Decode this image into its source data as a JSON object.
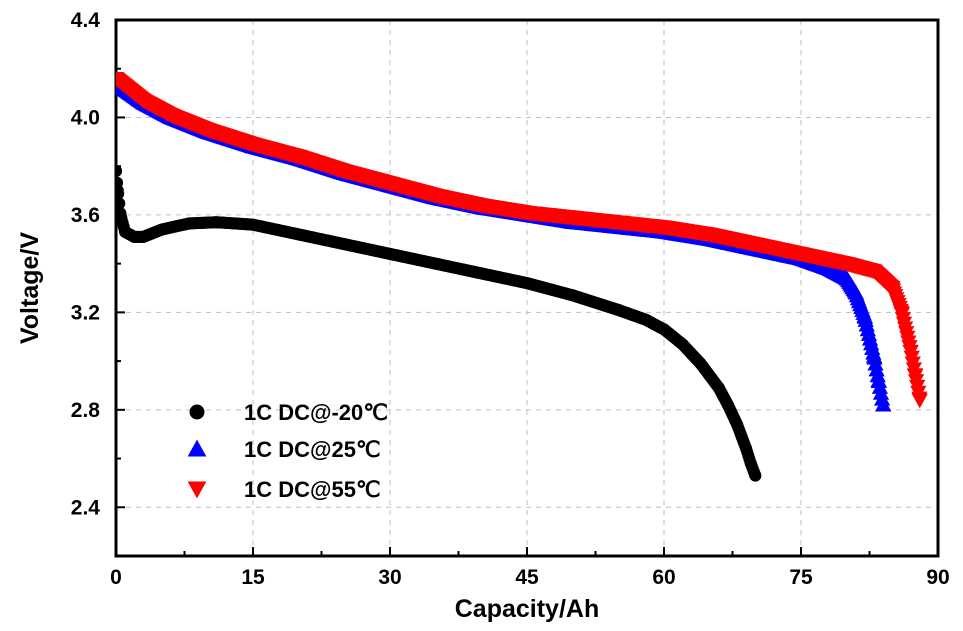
{
  "chart_data": {
    "type": "scatter",
    "xlabel": "Capacity/Ah",
    "ylabel": "Voltage/V",
    "xlim": [
      0,
      90
    ],
    "ylim": [
      2.2,
      4.4
    ],
    "xticks": [
      "0",
      "15",
      "30",
      "45",
      "60",
      "75",
      "90"
    ],
    "yticks": [
      "2.4",
      "2.8",
      "3.2",
      "3.6",
      "4.0",
      "4.4"
    ],
    "grid": true,
    "legend_position": "lower-left",
    "series": [
      {
        "name": "1C DC@-20℃",
        "marker": "circle",
        "color": "#000000",
        "points": [
          [
            0,
            3.78
          ],
          [
            0.2,
            3.7
          ],
          [
            0.5,
            3.6
          ],
          [
            1,
            3.53
          ],
          [
            2,
            3.51
          ],
          [
            3,
            3.51
          ],
          [
            5,
            3.54
          ],
          [
            8,
            3.565
          ],
          [
            11,
            3.57
          ],
          [
            15,
            3.56
          ],
          [
            20,
            3.52
          ],
          [
            25,
            3.48
          ],
          [
            30,
            3.44
          ],
          [
            35,
            3.4
          ],
          [
            40,
            3.36
          ],
          [
            45,
            3.32
          ],
          [
            50,
            3.27
          ],
          [
            55,
            3.21
          ],
          [
            58,
            3.17
          ],
          [
            60,
            3.13
          ],
          [
            62,
            3.07
          ],
          [
            64,
            2.99
          ],
          [
            66,
            2.89
          ],
          [
            67,
            2.82
          ],
          [
            68,
            2.74
          ],
          [
            69,
            2.64
          ],
          [
            69.5,
            2.58
          ],
          [
            70,
            2.53
          ]
        ]
      },
      {
        "name": "1C DC@25℃",
        "marker": "triangle-up",
        "color": "#0000ff",
        "points": [
          [
            0,
            4.14
          ],
          [
            3,
            4.06
          ],
          [
            6,
            4.0
          ],
          [
            10,
            3.94
          ],
          [
            15,
            3.88
          ],
          [
            20,
            3.83
          ],
          [
            25,
            3.77
          ],
          [
            30,
            3.72
          ],
          [
            35,
            3.67
          ],
          [
            40,
            3.63
          ],
          [
            45,
            3.6
          ],
          [
            50,
            3.57
          ],
          [
            55,
            3.55
          ],
          [
            60,
            3.53
          ],
          [
            65,
            3.5
          ],
          [
            70,
            3.46
          ],
          [
            75,
            3.42
          ],
          [
            78,
            3.38
          ],
          [
            80,
            3.34
          ],
          [
            81,
            3.28
          ],
          [
            82,
            3.18
          ],
          [
            83,
            3.02
          ],
          [
            83.5,
            2.92
          ],
          [
            84,
            2.82
          ]
        ]
      },
      {
        "name": "1C DC@55℃",
        "marker": "triangle-down",
        "color": "#ff0000",
        "points": [
          [
            0,
            4.16
          ],
          [
            3,
            4.07
          ],
          [
            6,
            4.01
          ],
          [
            10,
            3.95
          ],
          [
            15,
            3.89
          ],
          [
            20,
            3.84
          ],
          [
            25,
            3.78
          ],
          [
            30,
            3.73
          ],
          [
            35,
            3.68
          ],
          [
            40,
            3.64
          ],
          [
            45,
            3.61
          ],
          [
            50,
            3.59
          ],
          [
            55,
            3.57
          ],
          [
            60,
            3.55
          ],
          [
            65,
            3.52
          ],
          [
            70,
            3.48
          ],
          [
            75,
            3.44
          ],
          [
            80,
            3.4
          ],
          [
            83,
            3.37
          ],
          [
            85,
            3.3
          ],
          [
            86,
            3.2
          ],
          [
            87,
            3.04
          ],
          [
            87.5,
            2.94
          ],
          [
            88,
            2.84
          ]
        ]
      }
    ]
  }
}
